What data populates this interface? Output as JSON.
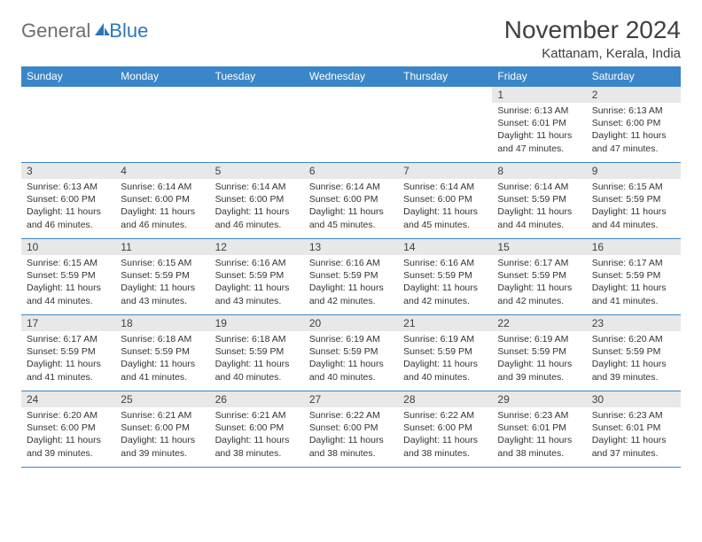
{
  "logo": {
    "general": "General",
    "blue": "Blue",
    "icon_color": "#2e77b8"
  },
  "title": "November 2024",
  "location": "Kattanam, Kerala, India",
  "colors": {
    "header_bg": "#3a86c8",
    "header_text": "#ffffff",
    "daynum_bg": "#e8e8e8",
    "border": "#3a86c8",
    "body_text": "#333333",
    "title_text": "#404040"
  },
  "day_headers": [
    "Sunday",
    "Monday",
    "Tuesday",
    "Wednesday",
    "Thursday",
    "Friday",
    "Saturday"
  ],
  "leading_empty": 5,
  "days": [
    {
      "n": "1",
      "sunrise": "6:13 AM",
      "sunset": "6:01 PM",
      "day_h": "11",
      "day_m": "47"
    },
    {
      "n": "2",
      "sunrise": "6:13 AM",
      "sunset": "6:00 PM",
      "day_h": "11",
      "day_m": "47"
    },
    {
      "n": "3",
      "sunrise": "6:13 AM",
      "sunset": "6:00 PM",
      "day_h": "11",
      "day_m": "46"
    },
    {
      "n": "4",
      "sunrise": "6:14 AM",
      "sunset": "6:00 PM",
      "day_h": "11",
      "day_m": "46"
    },
    {
      "n": "5",
      "sunrise": "6:14 AM",
      "sunset": "6:00 PM",
      "day_h": "11",
      "day_m": "46"
    },
    {
      "n": "6",
      "sunrise": "6:14 AM",
      "sunset": "6:00 PM",
      "day_h": "11",
      "day_m": "45"
    },
    {
      "n": "7",
      "sunrise": "6:14 AM",
      "sunset": "6:00 PM",
      "day_h": "11",
      "day_m": "45"
    },
    {
      "n": "8",
      "sunrise": "6:14 AM",
      "sunset": "5:59 PM",
      "day_h": "11",
      "day_m": "44"
    },
    {
      "n": "9",
      "sunrise": "6:15 AM",
      "sunset": "5:59 PM",
      "day_h": "11",
      "day_m": "44"
    },
    {
      "n": "10",
      "sunrise": "6:15 AM",
      "sunset": "5:59 PM",
      "day_h": "11",
      "day_m": "44"
    },
    {
      "n": "11",
      "sunrise": "6:15 AM",
      "sunset": "5:59 PM",
      "day_h": "11",
      "day_m": "43"
    },
    {
      "n": "12",
      "sunrise": "6:16 AM",
      "sunset": "5:59 PM",
      "day_h": "11",
      "day_m": "43"
    },
    {
      "n": "13",
      "sunrise": "6:16 AM",
      "sunset": "5:59 PM",
      "day_h": "11",
      "day_m": "42"
    },
    {
      "n": "14",
      "sunrise": "6:16 AM",
      "sunset": "5:59 PM",
      "day_h": "11",
      "day_m": "42"
    },
    {
      "n": "15",
      "sunrise": "6:17 AM",
      "sunset": "5:59 PM",
      "day_h": "11",
      "day_m": "42"
    },
    {
      "n": "16",
      "sunrise": "6:17 AM",
      "sunset": "5:59 PM",
      "day_h": "11",
      "day_m": "41"
    },
    {
      "n": "17",
      "sunrise": "6:17 AM",
      "sunset": "5:59 PM",
      "day_h": "11",
      "day_m": "41"
    },
    {
      "n": "18",
      "sunrise": "6:18 AM",
      "sunset": "5:59 PM",
      "day_h": "11",
      "day_m": "41"
    },
    {
      "n": "19",
      "sunrise": "6:18 AM",
      "sunset": "5:59 PM",
      "day_h": "11",
      "day_m": "40"
    },
    {
      "n": "20",
      "sunrise": "6:19 AM",
      "sunset": "5:59 PM",
      "day_h": "11",
      "day_m": "40"
    },
    {
      "n": "21",
      "sunrise": "6:19 AM",
      "sunset": "5:59 PM",
      "day_h": "11",
      "day_m": "40"
    },
    {
      "n": "22",
      "sunrise": "6:19 AM",
      "sunset": "5:59 PM",
      "day_h": "11",
      "day_m": "39"
    },
    {
      "n": "23",
      "sunrise": "6:20 AM",
      "sunset": "5:59 PM",
      "day_h": "11",
      "day_m": "39"
    },
    {
      "n": "24",
      "sunrise": "6:20 AM",
      "sunset": "6:00 PM",
      "day_h": "11",
      "day_m": "39"
    },
    {
      "n": "25",
      "sunrise": "6:21 AM",
      "sunset": "6:00 PM",
      "day_h": "11",
      "day_m": "39"
    },
    {
      "n": "26",
      "sunrise": "6:21 AM",
      "sunset": "6:00 PM",
      "day_h": "11",
      "day_m": "38"
    },
    {
      "n": "27",
      "sunrise": "6:22 AM",
      "sunset": "6:00 PM",
      "day_h": "11",
      "day_m": "38"
    },
    {
      "n": "28",
      "sunrise": "6:22 AM",
      "sunset": "6:00 PM",
      "day_h": "11",
      "day_m": "38"
    },
    {
      "n": "29",
      "sunrise": "6:23 AM",
      "sunset": "6:01 PM",
      "day_h": "11",
      "day_m": "38"
    },
    {
      "n": "30",
      "sunrise": "6:23 AM",
      "sunset": "6:01 PM",
      "day_h": "11",
      "day_m": "37"
    }
  ],
  "labels": {
    "sunrise": "Sunrise:",
    "sunset": "Sunset:",
    "daylight": "Daylight:",
    "hours": "hours",
    "and": "and",
    "minutes": "minutes."
  }
}
